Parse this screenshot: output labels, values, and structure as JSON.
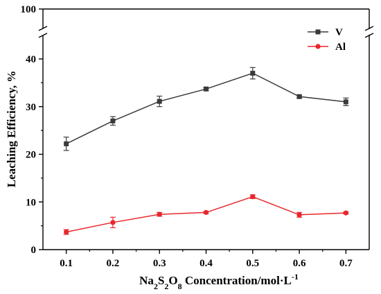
{
  "chart_data": {
    "type": "line",
    "title": "",
    "xlabel": {
      "prefix": "Na",
      "sub1": "2",
      "mid1": "S",
      "sub2": "2",
      "mid2": "O",
      "sub3": "8",
      "suffix": " Concentration/mol·L",
      "sup": "-1"
    },
    "ylabel": "Leaching Efficiency, %",
    "x": [
      0.1,
      0.2,
      0.3,
      0.4,
      0.5,
      0.6,
      0.7
    ],
    "x_tick_labels": [
      "0.1",
      "0.2",
      "0.3",
      "0.4",
      "0.5",
      "0.6",
      "0.7"
    ],
    "xlim": [
      0.05,
      0.75
    ],
    "y_ticks": [
      0,
      10,
      20,
      30,
      40,
      100
    ],
    "ylim": [
      0,
      100
    ],
    "y_axis_break": {
      "from": 42,
      "to": 95
    },
    "legend_position": "top-right",
    "series": [
      {
        "name": "V",
        "color": "#3a3a3a",
        "marker": "square",
        "values": [
          22.2,
          27.0,
          31.1,
          33.7,
          37.0,
          32.1,
          31.0
        ],
        "errors": [
          1.4,
          0.9,
          1.1,
          0.3,
          1.2,
          0.3,
          0.8
        ]
      },
      {
        "name": "Al",
        "color": "#e8262b",
        "marker": "circle",
        "values": [
          3.7,
          5.7,
          7.4,
          7.8,
          11.1,
          7.3,
          7.7
        ],
        "errors": [
          0.5,
          1.1,
          0.4,
          0.2,
          0.4,
          0.5,
          0.2
        ]
      }
    ]
  }
}
